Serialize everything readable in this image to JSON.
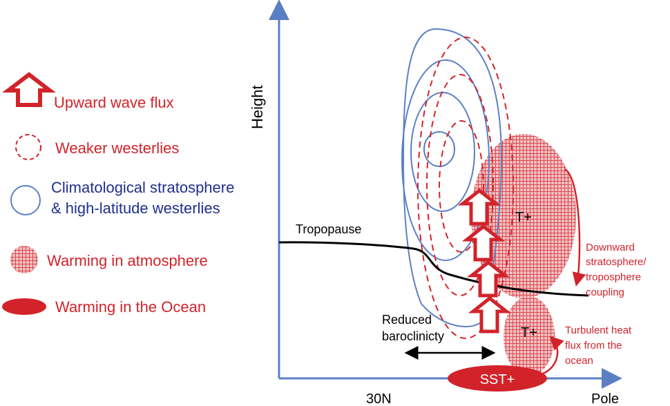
{
  "legend": {
    "upward_wave_flux": "Upward wave flux",
    "weaker_westerlies": "Weaker westerlies",
    "climatological_line1": "Climatological stratosphere",
    "climatological_line2": "& high-latitude westerlies",
    "warming_atmosphere": "Warming in atmosphere",
    "warming_ocean": "Warming in the Ocean"
  },
  "axes": {
    "y_label": "Height",
    "x_tick_30n": "30N",
    "x_tick_pole": "Pole"
  },
  "labels": {
    "tropopause": "Tropopause",
    "t_plus_upper": "T+",
    "t_plus_lower": "T+",
    "sst_plus": "SST+",
    "reduced_line1": "Reduced",
    "reduced_line2": "baroclinicty",
    "downward_line1": "Downward",
    "downward_line2": "stratosphere/",
    "downward_line3": "troposphere",
    "downward_line4": "coupling",
    "turbulent_line1": "Turbulent heat",
    "turbulent_line2": "flux from the",
    "turbulent_line3": "ocean"
  },
  "colors": {
    "red": "#d2232a",
    "blue": "#5b7fc4",
    "navy": "#1f2f8c",
    "hatch": "#e78a8e",
    "black": "#000000"
  }
}
